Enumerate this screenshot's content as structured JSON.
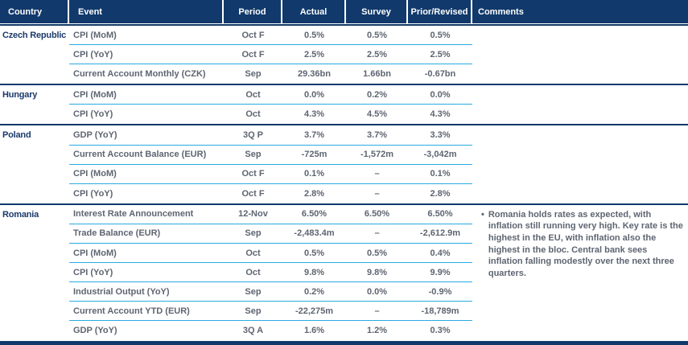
{
  "colors": {
    "navy": "#11396B",
    "cyan": "#29ABE2",
    "gray": "#5E6571",
    "country": "#1B3A6B",
    "header_text": "#FFFFFF"
  },
  "bullet_glyph": "•",
  "table": {
    "columns": [
      "Country",
      "Event",
      "Period",
      "Actual",
      "Survey",
      "Prior/Revised",
      "Comments"
    ]
  },
  "groups": [
    {
      "country": "Czech Republic",
      "comment": "",
      "rows": [
        {
          "event": "CPI (MoM)",
          "period": "Oct F",
          "actual": "0.5%",
          "survey": "0.5%",
          "prior": "0.5%"
        },
        {
          "event": "CPI (YoY)",
          "period": "Oct F",
          "actual": "2.5%",
          "survey": "2.5%",
          "prior": "2.5%"
        },
        {
          "event": "Current Account Monthly (CZK)",
          "period": "Sep",
          "actual": "29.36bn",
          "survey": "1.66bn",
          "prior": "-0.67bn"
        }
      ]
    },
    {
      "country": "Hungary",
      "comment": "",
      "rows": [
        {
          "event": "CPI (MoM)",
          "period": "Oct",
          "actual": "0.0%",
          "survey": "0.2%",
          "prior": "0.0%"
        },
        {
          "event": "CPI (YoY)",
          "period": "Oct",
          "actual": "4.3%",
          "survey": "4.5%",
          "prior": "4.3%"
        }
      ]
    },
    {
      "country": "Poland",
      "comment": "",
      "rows": [
        {
          "event": "GDP (YoY)",
          "period": "3Q P",
          "actual": "3.7%",
          "survey": "3.7%",
          "prior": "3.3%"
        },
        {
          "event": "Current Account Balance (EUR)",
          "period": "Sep",
          "actual": "-725m",
          "survey": "-1,572m",
          "prior": "-3,042m"
        },
        {
          "event": "CPI (MoM)",
          "period": "Oct F",
          "actual": "0.1%",
          "survey": "–",
          "prior": "0.1%"
        },
        {
          "event": "CPI (YoY)",
          "period": "Oct F",
          "actual": "2.8%",
          "survey": "–",
          "prior": "2.8%"
        }
      ]
    },
    {
      "country": "Romania",
      "comment": "Romania holds rates as expected, with inflation still running very high. Key rate is the highest in the EU, with inflation also the highest in the bloc. Central bank sees inflation falling modestly over the next three quarters.",
      "rows": [
        {
          "event": "Interest Rate Announcement",
          "period": "12-Nov",
          "actual": "6.50%",
          "survey": "6.50%",
          "prior": "6.50%"
        },
        {
          "event": "Trade Balance (EUR)",
          "period": "Sep",
          "actual": "-2,483.4m",
          "survey": "–",
          "prior": "-2,612.9m"
        },
        {
          "event": "CPI (MoM)",
          "period": "Oct",
          "actual": "0.5%",
          "survey": "0.5%",
          "prior": "0.4%"
        },
        {
          "event": "CPI (YoY)",
          "period": "Oct",
          "actual": "9.8%",
          "survey": "9.8%",
          "prior": "9.9%"
        },
        {
          "event": "Industrial Output (YoY)",
          "period": "Sep",
          "actual": "0.2%",
          "survey": "0.0%",
          "prior": "-0.9%"
        },
        {
          "event": "Current Account YTD (EUR)",
          "period": "Sep",
          "actual": "-22,275m",
          "survey": "–",
          "prior": "-18,789m"
        },
        {
          "event": "GDP (YoY)",
          "period": "3Q A",
          "actual": "1.6%",
          "survey": "1.2%",
          "prior": "0.3%"
        }
      ]
    }
  ]
}
